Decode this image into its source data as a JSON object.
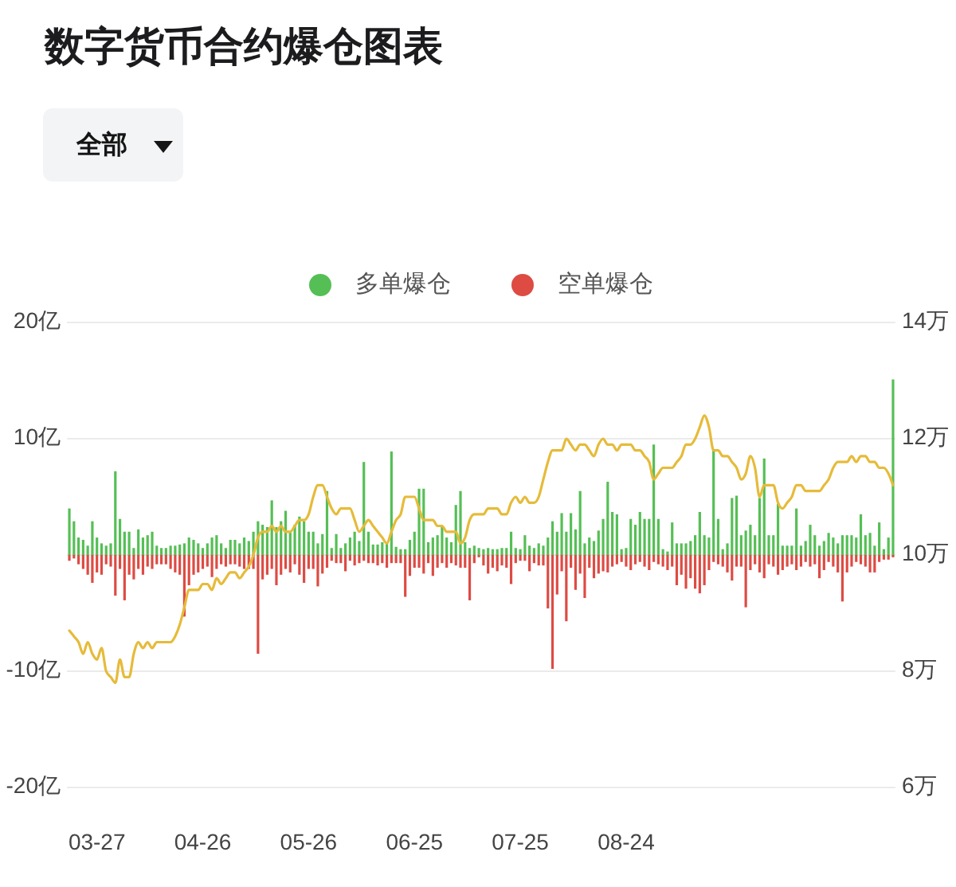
{
  "chart_data": {
    "type": "bar",
    "title": "数字货币合约爆仓图表",
    "annotations": [
      "全部"
    ],
    "categories": [
      null,
      null,
      null,
      null,
      null,
      null,
      "03-27",
      null,
      null,
      null,
      null,
      null,
      null,
      null,
      null,
      null,
      null,
      null,
      null,
      null,
      null,
      null,
      null,
      null,
      null,
      null,
      null,
      null,
      null,
      "04-26",
      null,
      null,
      null,
      null,
      null,
      null,
      null,
      null,
      null,
      null,
      null,
      null,
      null,
      null,
      null,
      null,
      null,
      null,
      null,
      null,
      null,
      null,
      "05-26",
      null,
      null,
      null,
      null,
      null,
      null,
      null,
      null,
      null,
      null,
      null,
      null,
      null,
      null,
      null,
      null,
      null,
      null,
      null,
      null,
      null,
      null,
      "06-25",
      null,
      null,
      null,
      null,
      null,
      null,
      null,
      null,
      null,
      null,
      null,
      null,
      null,
      null,
      null,
      null,
      null,
      null,
      null,
      null,
      null,
      null,
      "07-25",
      null,
      null,
      null,
      null,
      null,
      null,
      null,
      null,
      null,
      null,
      null,
      null,
      null,
      null,
      null,
      null,
      null,
      null,
      null,
      null,
      null,
      null,
      "08-24",
      null,
      null,
      null,
      null,
      null,
      null,
      null,
      null,
      null,
      null,
      null,
      null,
      null,
      null,
      null,
      null,
      null,
      null,
      null,
      null,
      null,
      null,
      null,
      null,
      null,
      null,
      null,
      null,
      null,
      null,
      null,
      null,
      null,
      null,
      null,
      null,
      null,
      null,
      null,
      null,
      null,
      null,
      null,
      null,
      null,
      null,
      null,
      null,
      null,
      null,
      null,
      null,
      null,
      null,
      null,
      null,
      null,
      null
    ],
    "series": [
      {
        "name": "多单爆仓",
        "type": "bar",
        "color": "#55bf55",
        "values": [
          4.0,
          2.9,
          1.5,
          1.3,
          0.8,
          2.9,
          1.5,
          1.0,
          0.8,
          1.0,
          7.2,
          3.1,
          2.0,
          2.0,
          0.6,
          2.2,
          1.5,
          1.7,
          2.0,
          0.8,
          0.6,
          0.6,
          0.8,
          0.8,
          0.9,
          1.0,
          1.5,
          1.3,
          1.0,
          0.6,
          1.0,
          1.5,
          1.7,
          1.0,
          0.6,
          1.3,
          1.3,
          1.0,
          1.5,
          1.2,
          2.0,
          2.9,
          2.6,
          2.4,
          4.7,
          2.4,
          2.9,
          3.8,
          2.0,
          2.6,
          3.3,
          2.9,
          2.0,
          2.0,
          1.0,
          1.8,
          5.5,
          0.6,
          1.8,
          0.6,
          1.0,
          1.5,
          2.0,
          1.2,
          8.0,
          2.0,
          0.9,
          0.9,
          1.1,
          1.1,
          8.9,
          0.7,
          0.5,
          0.5,
          1.3,
          2.0,
          5.7,
          5.7,
          1.1,
          1.5,
          1.7,
          2.5,
          1.5,
          1.1,
          4.3,
          5.5,
          1.1,
          0.6,
          0.8,
          0.6,
          0.5,
          0.6,
          0.5,
          0.5,
          0.6,
          0.6,
          2.0,
          0.6,
          0.5,
          1.7,
          0.8,
          0.6,
          1.0,
          0.8,
          1.5,
          2.9,
          2.0,
          3.6,
          2.0,
          3.6,
          2.2,
          5.5,
          1.0,
          1.5,
          1.2,
          2.1,
          3.1,
          6.3,
          3.7,
          3.5,
          0.5,
          0.6,
          3.1,
          2.6,
          3.7,
          3.1,
          3.1,
          9.5,
          3.1,
          0.5,
          0.3,
          2.8,
          1.0,
          1.0,
          1.0,
          1.2,
          1.7,
          3.7,
          1.7,
          1.5,
          9.0,
          3.1,
          0.5,
          1.0,
          4.9,
          5.1,
          1.7,
          2.1,
          2.6,
          1.7,
          4.9,
          8.3,
          1.7,
          1.7,
          4.4,
          0.8,
          0.8,
          0.8,
          4.0,
          0.8,
          1.2,
          2.6,
          1.7,
          0.8,
          1.2,
          1.9,
          1.5,
          1.0,
          1.7,
          1.7,
          1.7,
          1.5,
          3.5,
          1.7,
          1.9,
          0.8,
          2.8,
          0.5,
          1.5,
          15.1
        ]
      },
      {
        "name": "空单爆仓",
        "type": "bar",
        "color": "#dd4b43",
        "values": [
          -0.5,
          -0.3,
          -0.8,
          -1.2,
          -1.7,
          -2.4,
          -1.5,
          -1.7,
          -0.8,
          -1.0,
          -3.5,
          -1.2,
          -3.9,
          -1.7,
          -2.1,
          -1.2,
          -1.7,
          -1.0,
          -1.2,
          -0.8,
          -0.8,
          -0.8,
          -1.2,
          -1.5,
          -1.7,
          -5.3,
          -2.6,
          -1.7,
          -1.5,
          -1.2,
          -1.0,
          -1.9,
          -1.2,
          -0.8,
          -1.0,
          -0.8,
          -0.8,
          -1.0,
          -1.2,
          -1.2,
          -1.2,
          -8.5,
          -2.1,
          -1.7,
          -1.2,
          -2.6,
          -1.7,
          -1.2,
          -1.5,
          -0.8,
          -1.7,
          -2.4,
          -1.2,
          -1.2,
          -2.7,
          -1.6,
          -1.1,
          -0.5,
          -0.7,
          -0.7,
          -1.4,
          -0.5,
          -0.9,
          -0.7,
          -0.5,
          -0.7,
          -0.7,
          -0.9,
          -0.7,
          -1.1,
          -0.7,
          -0.7,
          -0.7,
          -3.6,
          -1.8,
          -1.1,
          -1.1,
          -1.6,
          -0.7,
          -1.8,
          -1.1,
          -0.7,
          -1.1,
          -0.7,
          -0.9,
          -1.1,
          -1.1,
          -3.9,
          -0.7,
          -0.2,
          -0.9,
          -1.6,
          -1.1,
          -1.4,
          -0.9,
          -1.1,
          -2.5,
          -0.7,
          -0.5,
          -0.5,
          -1.4,
          -0.7,
          -0.9,
          -0.9,
          -4.6,
          -9.8,
          -3.4,
          -1.4,
          -5.7,
          -1.1,
          -3.0,
          -1.6,
          -3.7,
          -1.1,
          -2.0,
          -1.6,
          -1.4,
          -1.5,
          -1.0,
          -0.8,
          -0.6,
          -1.0,
          -1.3,
          -0.8,
          -0.6,
          -1.0,
          -1.3,
          -0.6,
          -0.8,
          -1.0,
          -1.3,
          -1.0,
          -2.6,
          -1.7,
          -2.9,
          -2.0,
          -2.9,
          -3.3,
          -2.6,
          -1.3,
          -0.6,
          -0.8,
          -1.0,
          -1.5,
          -2.2,
          -1.0,
          -1.0,
          -4.5,
          -1.3,
          -0.8,
          -1.5,
          -2.0,
          -0.8,
          -1.0,
          -1.7,
          -1.3,
          -1.0,
          -0.8,
          -1.3,
          -1.0,
          -0.6,
          -1.0,
          -0.8,
          -2.0,
          -1.3,
          -0.6,
          -1.0,
          -1.5,
          -4.0,
          -1.5,
          -1.0,
          -0.6,
          -0.8,
          -1.0,
          -1.5,
          -1.5,
          -0.6,
          -0.4,
          -0.4,
          -0.2
        ]
      },
      {
        "type": "line",
        "axis": "y2",
        "color": "#e6bb3a",
        "values": [
          8.7,
          8.6,
          8.5,
          8.3,
          8.5,
          8.3,
          8.2,
          8.4,
          8.0,
          7.9,
          7.8,
          8.2,
          7.9,
          7.9,
          8.3,
          8.5,
          8.4,
          8.5,
          8.4,
          8.5,
          8.5,
          8.5,
          8.5,
          8.6,
          8.8,
          9.1,
          9.4,
          9.4,
          9.4,
          9.5,
          9.5,
          9.4,
          9.6,
          9.5,
          9.6,
          9.7,
          9.7,
          9.6,
          9.7,
          9.8,
          10.0,
          10.3,
          10.4,
          10.4,
          10.5,
          10.4,
          10.5,
          10.4,
          10.4,
          10.5,
          10.6,
          10.6,
          10.7,
          11.0,
          11.2,
          11.2,
          11.0,
          10.8,
          10.7,
          10.8,
          10.8,
          10.8,
          10.6,
          10.4,
          10.5,
          10.6,
          10.5,
          10.4,
          10.3,
          10.2,
          10.4,
          10.6,
          10.7,
          11.0,
          11.0,
          11.0,
          10.8,
          10.6,
          10.6,
          10.6,
          10.5,
          10.5,
          10.4,
          10.4,
          10.4,
          10.2,
          10.3,
          10.6,
          10.7,
          10.7,
          10.7,
          10.8,
          10.8,
          10.8,
          10.7,
          10.7,
          10.9,
          11.0,
          10.9,
          11.0,
          10.9,
          10.9,
          11.0,
          11.3,
          11.6,
          11.8,
          11.8,
          11.8,
          12.0,
          11.9,
          11.8,
          11.9,
          11.9,
          11.8,
          11.7,
          11.9,
          12.0,
          11.9,
          11.9,
          11.8,
          11.9,
          11.9,
          11.9,
          11.8,
          11.8,
          11.7,
          11.6,
          11.3,
          11.4,
          11.5,
          11.5,
          11.5,
          11.6,
          11.7,
          11.9,
          11.9,
          12.0,
          12.2,
          12.4,
          12.2,
          11.8,
          11.8,
          11.7,
          11.7,
          11.6,
          11.5,
          11.3,
          11.4,
          11.7,
          11.5,
          11.0,
          11.2,
          11.2,
          11.2,
          10.9,
          10.8,
          10.9,
          11.0,
          11.2,
          11.2,
          11.1,
          11.1,
          11.1,
          11.1,
          11.2,
          11.3,
          11.5,
          11.6,
          11.6,
          11.6,
          11.7,
          11.6,
          11.7,
          11.7,
          11.6,
          11.6,
          11.5,
          11.5,
          11.4,
          11.2
        ]
      }
    ],
    "stacked": true,
    "ylim": [
      -20,
      20
    ],
    "yticks": [
      {
        "value": -20,
        "label": "-20亿"
      },
      {
        "value": -10,
        "label": "-10亿"
      },
      {
        "value": 0,
        "label": null
      },
      {
        "value": 10,
        "label": "10亿"
      },
      {
        "value": 20,
        "label": "20亿"
      }
    ],
    "y2lim": [
      6,
      14
    ],
    "y2ticks": [
      {
        "value": 6,
        "label": "6万"
      },
      {
        "value": 8,
        "label": "8万"
      },
      {
        "value": 10,
        "label": "10万"
      },
      {
        "value": 12,
        "label": "12万"
      },
      {
        "value": 14,
        "label": "14万"
      }
    ],
    "grid": "y",
    "legend": "top"
  }
}
